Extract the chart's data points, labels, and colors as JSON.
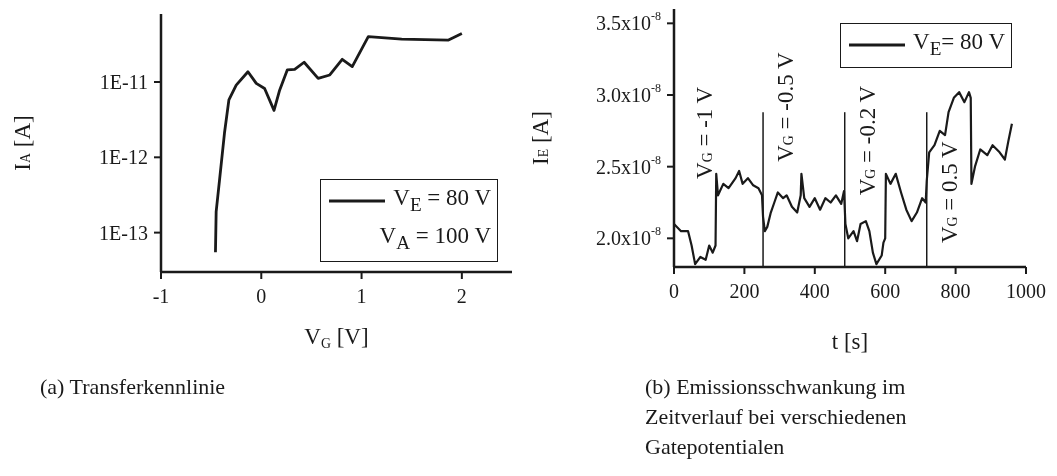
{
  "chart_data": [
    {
      "type": "line",
      "title": "(a) Transferkennlinie",
      "xlabel": "V$_{G}$ [V]",
      "ylabel": "I$_{A}$ [A]",
      "log": "y",
      "legend": "bottom right",
      "annotations": [
        "V$_{A}$ = 100 V"
      ],
      "xlim": [
        -1,
        2.5
      ],
      "xticks": [
        -1,
        0,
        1,
        2
      ],
      "ylim": [
        3e-14,
        8e-11
      ],
      "yticks": [
        {
          "value": 1e-13,
          "label": "1E-13"
        },
        {
          "value": 1e-12,
          "label": "1E-12"
        },
        {
          "value": 1e-11,
          "label": "1E-11"
        }
      ],
      "x": [
        -0.457,
        -0.45,
        -0.417,
        -0.367,
        -0.323,
        -0.25,
        -0.133,
        -0.05,
        0.033,
        0.127,
        0.183,
        0.26,
        0.333,
        0.427,
        0.567,
        0.683,
        0.807,
        0.907,
        1.067,
        1.4,
        1.867,
        2.0
      ],
      "series": [
        {
          "name": "V$_{E}$ = 80 V",
          "color": "#1a1a1a",
          "values": [
            5.5e-14,
            1.9e-13,
            4.9e-13,
            2.1e-12,
            5.8e-12,
            9.1e-12,
            1.37e-11,
            9.6e-12,
            8.2e-12,
            4.2e-12,
            7.8e-12,
            1.45e-11,
            1.47e-11,
            1.83e-11,
            1.12e-11,
            1.24e-11,
            2e-11,
            1.6e-11,
            4e-11,
            3.7e-11,
            3.6e-11,
            4.4e-11
          ]
        }
      ]
    },
    {
      "type": "line",
      "title": "(b) Emissionsschwankung im Zeitverlauf bei verschiedenen Gatepotentialen",
      "xlabel": "t [s]",
      "ylabel": "I$_{E}$ [A]",
      "legend": "top right",
      "xlim": [
        0,
        1000
      ],
      "xticks": [
        0,
        200,
        400,
        600,
        800,
        1000
      ],
      "ylim": [
        1.8e-08,
        3.6e-08
      ],
      "yticks": [
        {
          "value": 2e-08,
          "label": "2.0x10$^{-8}$"
        },
        {
          "value": 2.5e-08,
          "label": "2.5x10$^{-8}$"
        },
        {
          "value": 3e-08,
          "label": "3.0x10$^{-8}$"
        },
        {
          "value": 3.5e-08,
          "label": "3.5x10$^{-8}$"
        }
      ],
      "ref_lines": [
        {
          "axis": "x",
          "value": 253,
          "color": "#1a1a1a"
        },
        {
          "axis": "x",
          "value": 485,
          "color": "#1a1a1a"
        },
        {
          "axis": "x",
          "value": 718,
          "color": "#1a1a1a"
        }
      ],
      "annotations": [
        "V$_{G}$ = -1 V",
        "V$_{G}$ = -0.5 V",
        "V$_{G}$ = -0.2 V",
        "V$_{G}$ = 0.5 V"
      ],
      "x": [
        0,
        20,
        40,
        50,
        60,
        75,
        90,
        100,
        110,
        118,
        120,
        125,
        140,
        155,
        175,
        185,
        195,
        210,
        225,
        240,
        250,
        253,
        258,
        265,
        275,
        285,
        295,
        310,
        320,
        335,
        350,
        360,
        362,
        370,
        385,
        400,
        415,
        430,
        445,
        460,
        475,
        483,
        487,
        495,
        510,
        520,
        530,
        545,
        555,
        565,
        575,
        590,
        595,
        600,
        602,
        615,
        630,
        645,
        660,
        675,
        690,
        705,
        715,
        718,
        725,
        740,
        755,
        770,
        780,
        795,
        810,
        825,
        838,
        843,
        845,
        855,
        870,
        890,
        905,
        925,
        940,
        950,
        960
      ],
      "series": [
        {
          "name": "V$_{E}$= 80 V",
          "color": "#1a1a1a",
          "values": [
            2.1e-08,
            2.05e-08,
            2.05e-08,
            1.95e-08,
            1.82e-08,
            1.87e-08,
            1.85e-08,
            1.95e-08,
            1.9e-08,
            1.95e-08,
            2.45e-08,
            2.3e-08,
            2.38e-08,
            2.35e-08,
            2.42e-08,
            2.47e-08,
            2.38e-08,
            2.42e-08,
            2.37e-08,
            2.35e-08,
            2.3e-08,
            2.15e-08,
            2.05e-08,
            2.08e-08,
            2.18e-08,
            2.25e-08,
            2.32e-08,
            2.28e-08,
            2.3e-08,
            2.22e-08,
            2.18e-08,
            2.3e-08,
            2.45e-08,
            2.28e-08,
            2.22e-08,
            2.28e-08,
            2.2e-08,
            2.28e-08,
            2.25e-08,
            2.3e-08,
            2.24e-08,
            2.33e-08,
            2.1e-08,
            2e-08,
            2.05e-08,
            1.98e-08,
            2.1e-08,
            2.12e-08,
            2.05e-08,
            1.9e-08,
            1.82e-08,
            1.88e-08,
            1.97e-08,
            2e-08,
            2.45e-08,
            2.38e-08,
            2.45e-08,
            2.32e-08,
            2.2e-08,
            2.12e-08,
            2.18e-08,
            2.28e-08,
            2.25e-08,
            2.4e-08,
            2.6e-08,
            2.65e-08,
            2.75e-08,
            2.72e-08,
            2.88e-08,
            2.98e-08,
            3.02e-08,
            2.95e-08,
            3.02e-08,
            2.98e-08,
            2.38e-08,
            2.5e-08,
            2.62e-08,
            2.58e-08,
            2.65e-08,
            2.6e-08,
            2.55e-08,
            2.68e-08,
            2.8e-08
          ]
        }
      ]
    }
  ]
}
